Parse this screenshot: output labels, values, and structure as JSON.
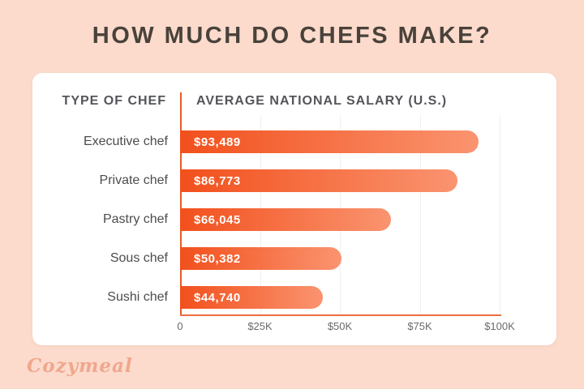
{
  "page": {
    "background": "#fcdbcc",
    "title": "HOW MUCH DO CHEFS MAKE?"
  },
  "brand": {
    "logo_text": "Cozymeal",
    "logo_color": "#f0a78d"
  },
  "table_headers": {
    "col1": "TYPE OF CHEF",
    "col2": "AVERAGE NATIONAL SALARY (U.S.)"
  },
  "chart_data": {
    "type": "bar",
    "orientation": "horizontal",
    "title": "HOW MUCH DO CHEFS MAKE?",
    "xlabel": "AVERAGE NATIONAL SALARY (U.S.)",
    "ylabel": "TYPE OF CHEF",
    "categories": [
      "Executive chef",
      "Private chef",
      "Pastry chef",
      "Sous chef",
      "Sushi chef"
    ],
    "values": [
      93489,
      86773,
      66045,
      50382,
      44740
    ],
    "rows": [
      {
        "label": "Executive chef",
        "value": 93489,
        "value_label": "$93,489"
      },
      {
        "label": "Private chef",
        "value": 86773,
        "value_label": "$86,773"
      },
      {
        "label": "Pastry chef",
        "value": 66045,
        "value_label": "$66,045"
      },
      {
        "label": "Sous chef",
        "value": 50382,
        "value_label": "$50,382"
      },
      {
        "label": "Sushi chef",
        "value": 44740,
        "value_label": "$44,740"
      }
    ],
    "xlim": [
      0,
      100000
    ],
    "x_ticks": [
      "0",
      "$25K",
      "$50K",
      "$75K",
      "$100K"
    ],
    "grid": true,
    "legend": "none",
    "colors": {
      "bar_gradient_start": "#f2501c",
      "bar_gradient_end": "#fa9470",
      "y_axis_line": "#e85c22",
      "x_axis_line": "#eb6e3e",
      "tick_label": "#6a6a6a",
      "gridline": "#efefec",
      "value_label_text": "#ffffff"
    }
  }
}
